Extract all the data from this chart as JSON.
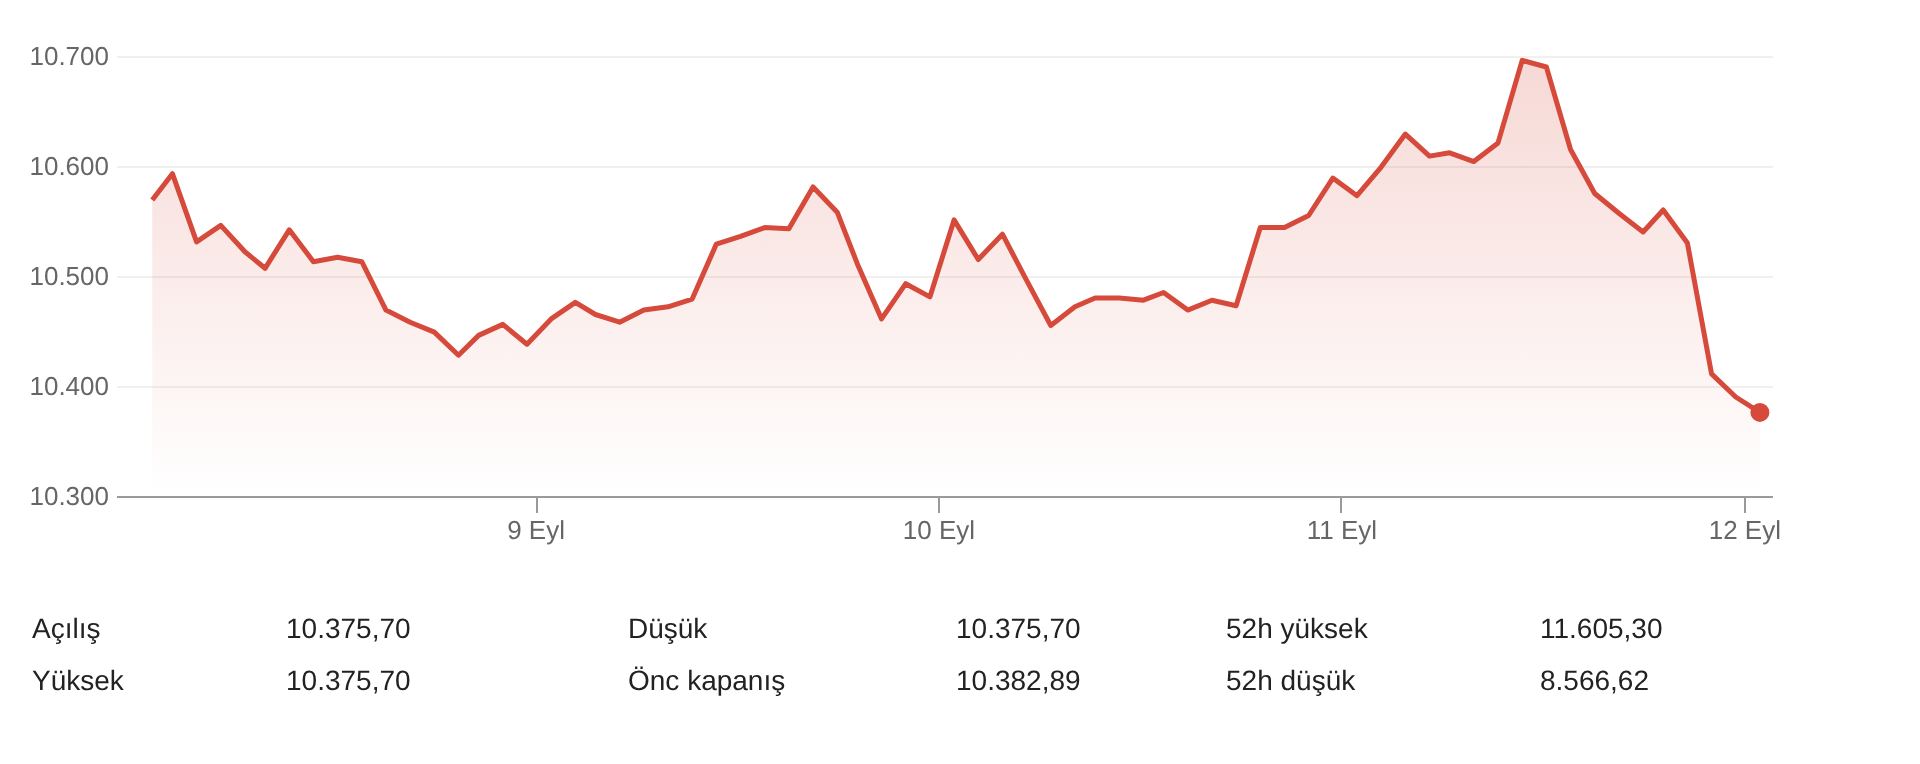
{
  "chart_data": {
    "type": "area",
    "x": [
      8.05,
      8.1,
      8.16,
      8.22,
      8.28,
      8.33,
      8.39,
      8.45,
      8.51,
      8.57,
      8.63,
      8.69,
      8.75,
      8.81,
      8.86,
      8.92,
      8.98,
      9.04,
      9.1,
      9.15,
      9.21,
      9.27,
      9.33,
      9.39,
      9.45,
      9.51,
      9.57,
      9.63,
      9.69,
      9.75,
      9.8,
      9.86,
      9.92,
      9.98,
      10.04,
      10.1,
      10.16,
      10.22,
      10.28,
      10.34,
      10.39,
      10.45,
      10.51,
      10.56,
      10.62,
      10.68,
      10.74,
      10.8,
      10.86,
      10.92,
      10.98,
      11.04,
      11.1,
      11.16,
      11.22,
      11.27,
      11.33,
      11.39,
      11.45,
      11.51,
      11.57,
      11.63,
      11.69,
      11.75,
      11.8,
      11.86,
      11.92,
      11.98,
      12.04
    ],
    "series": [
      {
        "color": "#d64a3b",
        "values": [
          10569,
          10593,
          10531,
          10546,
          10522,
          10507,
          10542,
          10513,
          10517,
          10513,
          10469,
          10458,
          10449,
          10428,
          10446,
          10456,
          10438,
          10461,
          10476,
          10465,
          10458,
          10469,
          10472,
          10479,
          10529,
          10536,
          10544,
          10543,
          10581,
          10558,
          10511,
          10461,
          10493,
          10481,
          10551,
          10515,
          10538,
          10496,
          10455,
          10472,
          10480,
          10480,
          10478,
          10485,
          10469,
          10478,
          10473,
          10544,
          10544,
          10555,
          10589,
          10573,
          10599,
          10629,
          10609,
          10612,
          10604,
          10621,
          10696,
          10690,
          10615,
          10575,
          10557,
          10540,
          10560,
          10530,
          10411,
          10390,
          10376
        ]
      },
      {
        "type": "scatter",
        "color": "#d64a3b",
        "x": [
          12.04
        ],
        "values": [
          10376
        ]
      }
    ],
    "xlim": [
      7.96,
      12.07
    ],
    "xticks": [
      {
        "value": 9,
        "label": "9 Eyl"
      },
      {
        "value": 10,
        "label": "10 Eyl"
      },
      {
        "value": 11,
        "label": "11 Eyl"
      },
      {
        "value": 12,
        "label": "12 Eyl"
      }
    ],
    "ylim": [
      10300,
      10700
    ],
    "yticks": [
      {
        "value": 10300,
        "label": "10.300"
      },
      {
        "value": 10400,
        "label": "10.400"
      },
      {
        "value": 10500,
        "label": "10.500"
      },
      {
        "value": 10600,
        "label": "10.600"
      },
      {
        "value": 10700,
        "label": "10.700"
      }
    ],
    "grid": "y",
    "annotations": [
      "Açılış",
      "10.375,70",
      "Düşük",
      "10.375,70",
      "52h yüksek",
      "11.605,30",
      "Yüksek",
      "10.375,70",
      "Önc kapanış",
      "10.382,89",
      "52h düşük",
      "8.566,62"
    ]
  }
}
